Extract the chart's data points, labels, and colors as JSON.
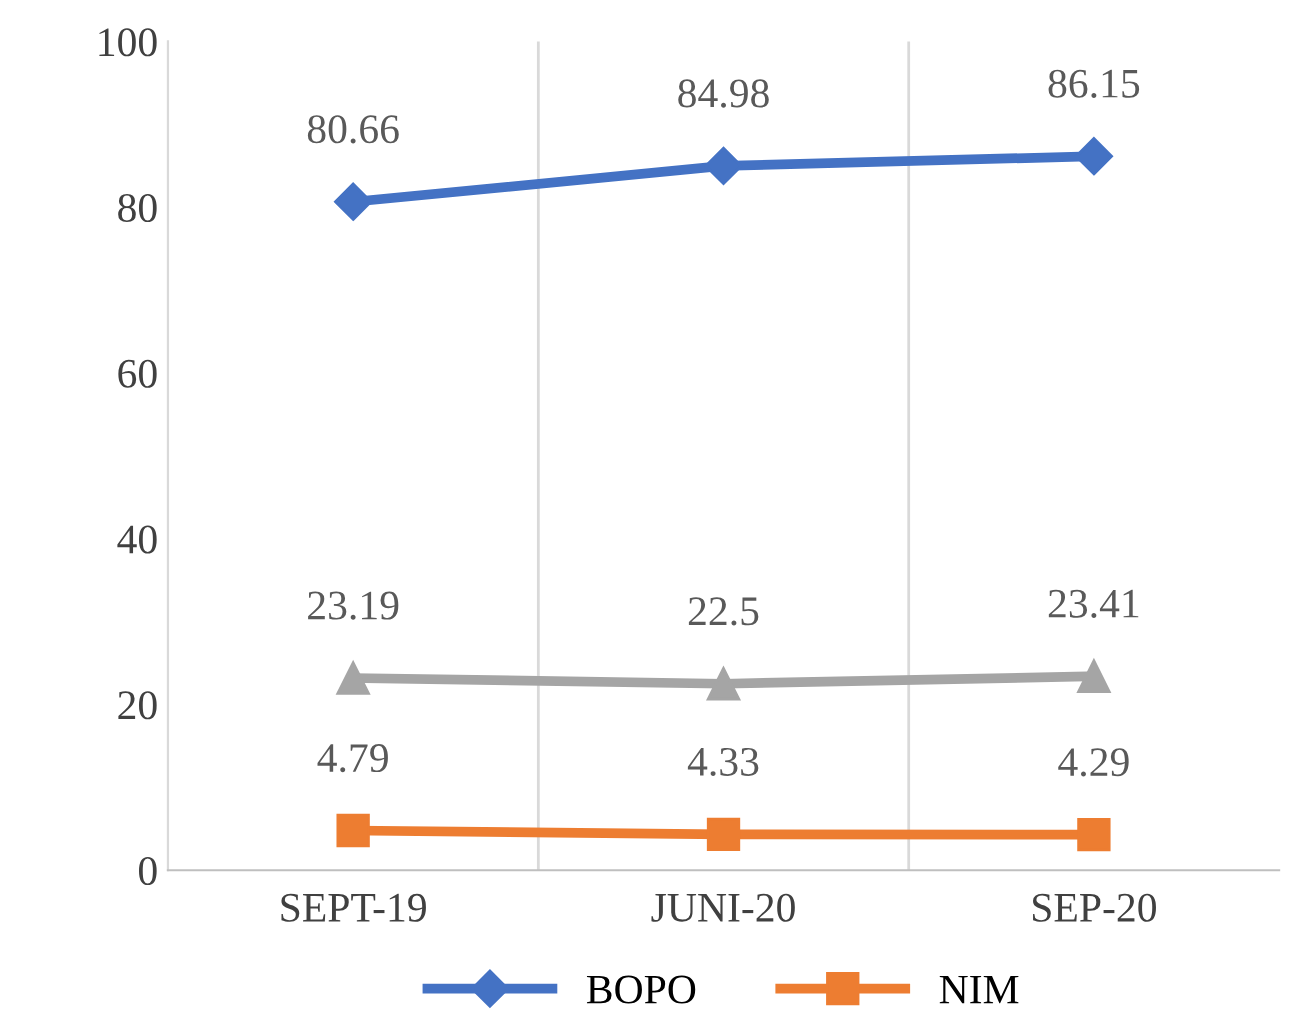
{
  "chart_data": {
    "type": "line",
    "categories": [
      "SEPT-19",
      "JUNI-20",
      "SEP-20"
    ],
    "series": [
      {
        "name": "BOPO",
        "color": "#4472c4",
        "marker": "diamond",
        "values": [
          80.66,
          84.98,
          86.15
        ]
      },
      {
        "name": "NIM",
        "color": "#ed7d31",
        "marker": "square",
        "values": [
          4.79,
          4.33,
          4.29
        ]
      },
      {
        "color": "#a5a5a5",
        "marker": "triangle",
        "values": [
          23.19,
          22.5,
          23.41
        ]
      }
    ],
    "ylim": [
      0,
      100
    ],
    "yticks": [
      0,
      20,
      40,
      60,
      80,
      100
    ],
    "grid": "x",
    "legend": "bottom",
    "data_labels": true
  }
}
